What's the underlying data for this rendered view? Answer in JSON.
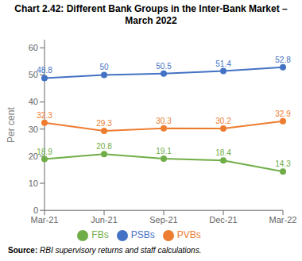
{
  "chart_data": {
    "type": "line",
    "title": "Chart 2.42: Different Bank Groups in the Inter-Bank Market –\nMarch 2022",
    "y_label": "Per cent",
    "categories": [
      "Mar-21",
      "Jun-21",
      "Sep-21",
      "Dec-21",
      "Mar-22"
    ],
    "series": [
      {
        "name": "PSBs",
        "color": "#4472C4",
        "marker": "circle",
        "values": [
          48.8,
          50.0,
          50.5,
          51.4,
          52.8
        ]
      },
      {
        "name": "PVBs",
        "color": "#ED7D31",
        "marker": "circle",
        "values": [
          32.3,
          29.3,
          30.3,
          30.2,
          32.9
        ]
      },
      {
        "name": "FBs",
        "color": "#70AD47",
        "marker": "circle",
        "values": [
          18.9,
          20.8,
          19.1,
          18.4,
          14.3
        ]
      }
    ],
    "ylim": [
      0,
      63
    ],
    "yticks": [
      0,
      10,
      20,
      30,
      40,
      50,
      60
    ],
    "data_labels": true,
    "legend": "bottom",
    "grid": false,
    "annotations": [
      "Source:",
      "RBI supervisory returns and staff calculations."
    ]
  }
}
